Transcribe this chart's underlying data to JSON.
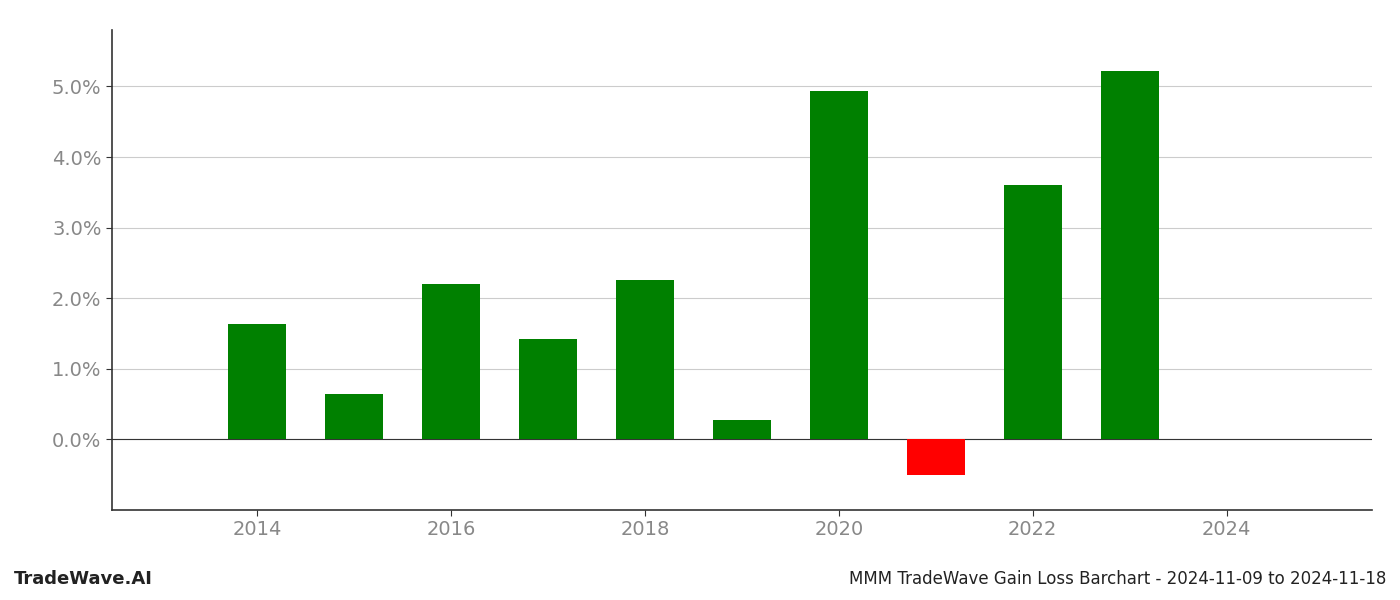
{
  "years": [
    2014,
    2015,
    2016,
    2017,
    2018,
    2019,
    2020,
    2021,
    2022,
    2023
  ],
  "values": [
    0.0163,
    0.0065,
    0.022,
    0.0142,
    0.0226,
    0.0028,
    0.0493,
    -0.005,
    0.036,
    0.0522
  ],
  "bar_colors": [
    "#008000",
    "#008000",
    "#008000",
    "#008000",
    "#008000",
    "#008000",
    "#008000",
    "#ff0000",
    "#008000",
    "#008000"
  ],
  "title": "MMM TradeWave Gain Loss Barchart - 2024-11-09 to 2024-11-18",
  "watermark": "TradeWave.AI",
  "background_color": "#ffffff",
  "grid_color": "#cccccc",
  "bar_width": 0.6,
  "ylim_min": -0.01,
  "ylim_max": 0.058,
  "xticks": [
    2014,
    2016,
    2018,
    2020,
    2022,
    2024
  ],
  "yticks": [
    0.0,
    0.01,
    0.02,
    0.03,
    0.04,
    0.05
  ],
  "tick_label_color": "#888888",
  "spine_color": "#333333",
  "xlabel_fontsize": 14,
  "ylabel_fontsize": 14,
  "title_fontsize": 12,
  "watermark_fontsize": 13
}
